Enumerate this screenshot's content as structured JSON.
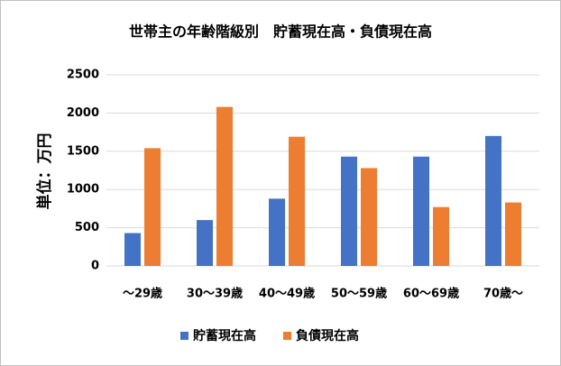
{
  "chart_data": {
    "type": "bar",
    "title": "世帯主の年齢階級別　貯蓄現在高・負債現在高",
    "y_label": "単位：万円",
    "categories": [
      "～29歳",
      "30～39歳",
      "40～49歳",
      "50～59歳",
      "60～69歳",
      "70歳～"
    ],
    "series": [
      {
        "name": "貯蓄現在高",
        "color": "#4472c4",
        "values": [
          430,
          600,
          880,
          1430,
          1430,
          1700
        ]
      },
      {
        "name": "負債現在高",
        "color": "#ed7d31",
        "values": [
          1540,
          2080,
          1690,
          1280,
          770,
          830
        ]
      }
    ],
    "ylim": [
      0,
      2500
    ],
    "yticks": [
      0,
      500,
      1000,
      1500,
      2000,
      2500
    ],
    "grid": true,
    "legend": "bottom"
  }
}
